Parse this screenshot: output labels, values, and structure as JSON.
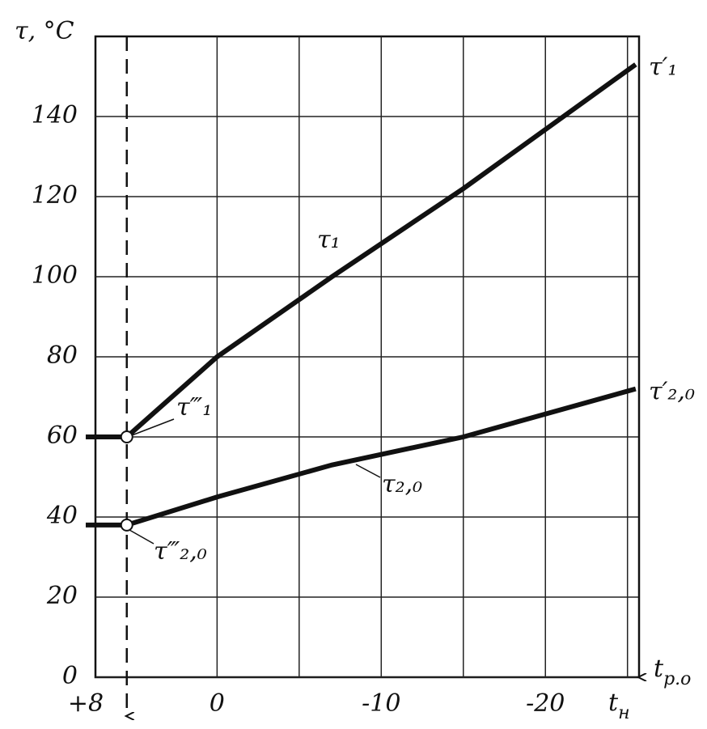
{
  "chart_data": {
    "type": "line",
    "ylabel": "τ, °C",
    "xlabel": {
      "main": "t",
      "sub": "р.о"
    },
    "x_end_label": {
      "main": "t",
      "sub": "н"
    },
    "xlim": [
      8,
      -26
    ],
    "ylim": [
      0,
      160
    ],
    "yticks": [
      0,
      20,
      40,
      60,
      80,
      100,
      120,
      140
    ],
    "xticks": [
      {
        "value": 8,
        "label": "+8"
      },
      0,
      -10,
      -20
    ],
    "xgrid": [
      0,
      -5,
      -10,
      -15,
      -20,
      -25
    ],
    "grid": true,
    "color": "#111111",
    "series": [
      {
        "name": "τ₁",
        "end_label": "τ′₁",
        "point_label": "τ‴₁",
        "color": "#111111",
        "x": [
          8,
          5.5,
          0,
          -7,
          -15,
          -25.5
        ],
        "values": [
          60,
          60,
          80,
          100,
          122,
          153
        ]
      },
      {
        "name": "τ₂,₀",
        "end_label": "τ′₂,₀",
        "point_label": "τ‴₂,₀",
        "color": "#111111",
        "x": [
          8,
          5.5,
          0,
          -7,
          -15,
          -25.5
        ],
        "values": [
          38,
          38,
          45,
          53,
          60,
          72
        ]
      }
    ]
  }
}
